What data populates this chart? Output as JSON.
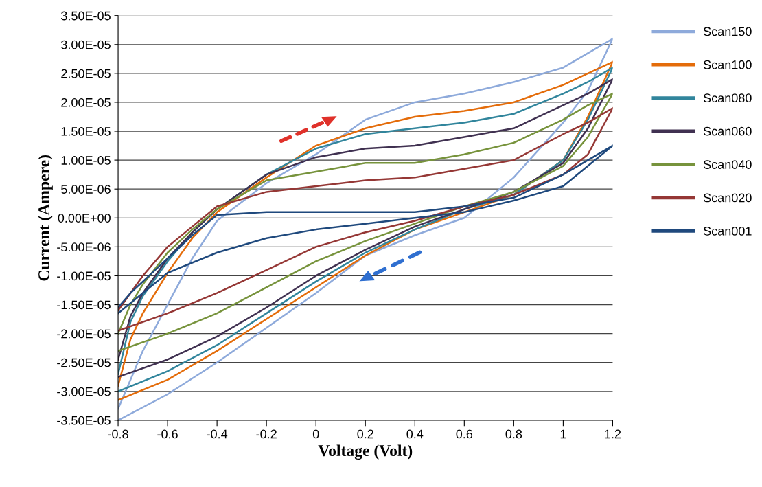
{
  "chart_data": {
    "type": "line",
    "xlabel": "Voltage (Volt)",
    "ylabel": "Current (Ampere)",
    "series": [
      {
        "name": "Scan150",
        "color": "#8eaadb",
        "x": [
          -0.8,
          -0.75,
          -0.7,
          -0.6,
          -0.5,
          -0.4,
          -0.2,
          0,
          0.2,
          0.4,
          0.6,
          0.8,
          1.0,
          1.1,
          1.2
        ],
        "values": [
          -3.3e-05,
          -2.8e-05,
          -2.3e-05,
          -1.5e-05,
          -7e-06,
          -5e-07,
          6e-06,
          1.1e-05,
          1.7e-05,
          2e-05,
          2.15e-05,
          2.35e-05,
          2.6e-05,
          2.85e-05,
          3.1e-05
        ]
      },
      {
        "color": "#8eaadb",
        "x": [
          1.2,
          1.1,
          1.0,
          0.8,
          0.6,
          0.4,
          0.2,
          0,
          -0.2,
          -0.4,
          -0.6,
          -0.8
        ],
        "values": [
          3.1e-05,
          2.2e-05,
          1.65e-05,
          7e-06,
          0,
          -3e-06,
          -6.5e-06,
          -1.3e-05,
          -1.9e-05,
          -2.5e-05,
          -3.05e-05,
          -3.5e-05
        ]
      },
      {
        "name": "Scan100",
        "color": "#e46c0a",
        "x": [
          -0.8,
          -0.75,
          -0.7,
          -0.6,
          -0.5,
          -0.4,
          -0.2,
          0,
          0.2,
          0.4,
          0.6,
          0.8,
          1.0,
          1.1,
          1.2
        ],
        "values": [
          -2.9e-05,
          -2.1e-05,
          -1.65e-05,
          -9.5e-06,
          -3.5e-06,
          1e-06,
          7e-06,
          1.25e-05,
          1.55e-05,
          1.75e-05,
          1.85e-05,
          2e-05,
          2.3e-05,
          2.5e-05,
          2.7e-05
        ]
      },
      {
        "color": "#e46c0a",
        "x": [
          1.2,
          1.1,
          1.0,
          0.8,
          0.6,
          0.4,
          0.2,
          0,
          -0.2,
          -0.4,
          -0.6,
          -0.8
        ],
        "values": [
          2.7e-05,
          1.75e-05,
          1e-05,
          4e-06,
          1e-06,
          -2e-06,
          -6.5e-06,
          -1.2e-05,
          -1.75e-05,
          -2.3e-05,
          -2.8e-05,
          -3.15e-05
        ]
      },
      {
        "name": "Scan080",
        "color": "#31859c",
        "x": [
          -0.8,
          -0.75,
          -0.7,
          -0.6,
          -0.5,
          -0.4,
          -0.2,
          0,
          0.2,
          0.4,
          0.6,
          0.8,
          1.0,
          1.1,
          1.2
        ],
        "values": [
          -2.7e-05,
          -1.8e-05,
          -1.35e-05,
          -7.5e-06,
          -2.5e-06,
          1.5e-06,
          7.5e-06,
          1.2e-05,
          1.45e-05,
          1.55e-05,
          1.65e-05,
          1.8e-05,
          2.15e-05,
          2.35e-05,
          2.6e-05
        ]
      },
      {
        "color": "#31859c",
        "x": [
          1.2,
          1.1,
          1.0,
          0.8,
          0.6,
          0.4,
          0.2,
          0,
          -0.2,
          -0.4,
          -0.6,
          -0.8
        ],
        "values": [
          2.6e-05,
          1.7e-05,
          1e-05,
          4e-06,
          1.5e-06,
          -2e-06,
          -6e-06,
          -1.1e-05,
          -1.65e-05,
          -2.2e-05,
          -2.65e-05,
          -3e-05
        ]
      },
      {
        "name": "Scan060",
        "color": "#403151",
        "x": [
          -0.8,
          -0.75,
          -0.7,
          -0.6,
          -0.5,
          -0.4,
          -0.2,
          0,
          0.2,
          0.4,
          0.6,
          0.8,
          1.0,
          1.1,
          1.2
        ],
        "values": [
          -2.45e-05,
          -1.7e-05,
          -1.3e-05,
          -7e-06,
          -2.5e-06,
          1.5e-06,
          7.5e-06,
          1.05e-05,
          1.2e-05,
          1.25e-05,
          1.4e-05,
          1.55e-05,
          1.95e-05,
          2.15e-05,
          2.4e-05
        ]
      },
      {
        "color": "#403151",
        "x": [
          1.2,
          1.1,
          1.0,
          0.8,
          0.6,
          0.4,
          0.2,
          0,
          -0.2,
          -0.4,
          -0.6,
          -0.8
        ],
        "values": [
          2.4e-05,
          1.55e-05,
          9.5e-06,
          4.5e-06,
          1.5e-06,
          -1.5e-06,
          -5.5e-06,
          -1e-05,
          -1.55e-05,
          -2.05e-05,
          -2.45e-05,
          -2.75e-05
        ]
      },
      {
        "name": "Scan040",
        "color": "#77933c",
        "x": [
          -0.8,
          -0.75,
          -0.7,
          -0.6,
          -0.5,
          -0.4,
          -0.2,
          0,
          0.2,
          0.4,
          0.6,
          0.8,
          1.0,
          1.1,
          1.2
        ],
        "values": [
          -2e-05,
          -1.5e-05,
          -1.15e-05,
          -6e-06,
          -2e-06,
          1.5e-06,
          6.5e-06,
          8e-06,
          9.5e-06,
          9.5e-06,
          1.1e-05,
          1.3e-05,
          1.7e-05,
          1.95e-05,
          2.15e-05
        ]
      },
      {
        "color": "#77933c",
        "x": [
          1.2,
          1.1,
          1.0,
          0.8,
          0.6,
          0.4,
          0.2,
          0,
          -0.2,
          -0.4,
          -0.6,
          -0.8
        ],
        "values": [
          2.15e-05,
          1.4e-05,
          9e-06,
          4.5e-06,
          2e-06,
          -1e-06,
          -4e-06,
          -7.5e-06,
          -1.2e-05,
          -1.65e-05,
          -2e-05,
          -2.3e-05
        ]
      },
      {
        "name": "Scan020",
        "color": "#953735",
        "x": [
          -0.8,
          -0.75,
          -0.7,
          -0.6,
          -0.5,
          -0.4,
          -0.2,
          0,
          0.2,
          0.4,
          0.6,
          0.8,
          1.0,
          1.1,
          1.2
        ],
        "values": [
          -1.6e-05,
          -1.3e-05,
          -1e-05,
          -5e-06,
          -1.5e-06,
          2e-06,
          4.5e-06,
          5.5e-06,
          6.5e-06,
          7e-06,
          8.5e-06,
          1e-05,
          1.45e-05,
          1.65e-05,
          1.9e-05
        ]
      },
      {
        "color": "#953735",
        "x": [
          1.2,
          1.1,
          1.0,
          0.8,
          0.6,
          0.4,
          0.2,
          0,
          -0.2,
          -0.4,
          -0.6,
          -0.8
        ],
        "values": [
          1.9e-05,
          1.1e-05,
          7.5e-06,
          4e-06,
          2e-06,
          -5e-07,
          -2.5e-06,
          -5e-06,
          -9e-06,
          -1.3e-05,
          -1.65e-05,
          -1.95e-05
        ]
      },
      {
        "name": "Scan001",
        "color": "#1f497d",
        "x": [
          -0.8,
          -0.75,
          -0.7,
          -0.6,
          -0.5,
          -0.4,
          -0.2,
          0,
          0.2,
          0.4,
          0.6,
          0.8,
          1.0,
          1.1,
          1.2
        ],
        "values": [
          -1.55e-05,
          -1.3e-05,
          -1.1e-05,
          -7e-06,
          -3e-06,
          5e-07,
          1e-06,
          1e-06,
          1e-06,
          1e-06,
          2e-06,
          3.5e-06,
          7.5e-06,
          1e-05,
          1.25e-05
        ]
      },
      {
        "color": "#1f497d",
        "x": [
          1.2,
          1.1,
          1.0,
          0.8,
          0.6,
          0.4,
          0.2,
          0,
          -0.2,
          -0.4,
          -0.6,
          -0.8
        ],
        "values": [
          1.25e-05,
          9e-06,
          5.5e-06,
          3e-06,
          1e-06,
          0,
          -1e-06,
          -2e-06,
          -3.5e-06,
          -6e-06,
          -9.5e-06,
          -1.65e-05
        ]
      }
    ],
    "xlim": [
      -0.8,
      1.2
    ],
    "xticks": [
      -0.8,
      -0.6,
      -0.4,
      -0.2,
      0,
      0.2,
      0.4,
      0.6,
      0.8,
      1,
      1.2
    ],
    "ylim": [
      -3.5e-05,
      3.5e-05
    ],
    "yticks": [
      {
        "value": -3.5e-05,
        "label": "-3.50E-05"
      },
      {
        "value": -3e-05,
        "label": "-3.00E-05"
      },
      {
        "value": -2.5e-05,
        "label": "-2.50E-05"
      },
      {
        "value": -2e-05,
        "label": "-2.00E-05"
      },
      {
        "value": -1.5e-05,
        "label": "-1.50E-05"
      },
      {
        "value": -1e-05,
        "label": "-1.00E-05"
      },
      {
        "value": -5e-06,
        "label": "-5.00E-06"
      },
      {
        "value": 0,
        "label": "0.00E+00"
      },
      {
        "value": 5e-06,
        "label": "5.00E-06"
      },
      {
        "value": 1e-05,
        "label": "1.00E-05"
      },
      {
        "value": 1.5e-05,
        "label": "1.50E-05"
      },
      {
        "value": 2e-05,
        "label": "2.00E-05"
      },
      {
        "value": 2.5e-05,
        "label": "2.50E-05"
      },
      {
        "value": 3e-05,
        "label": "3.00E-05"
      },
      {
        "value": 3.5e-05,
        "label": "3.50E-05"
      }
    ],
    "grid": "y",
    "legend": "right",
    "marker": "none",
    "line_style": "solid"
  }
}
